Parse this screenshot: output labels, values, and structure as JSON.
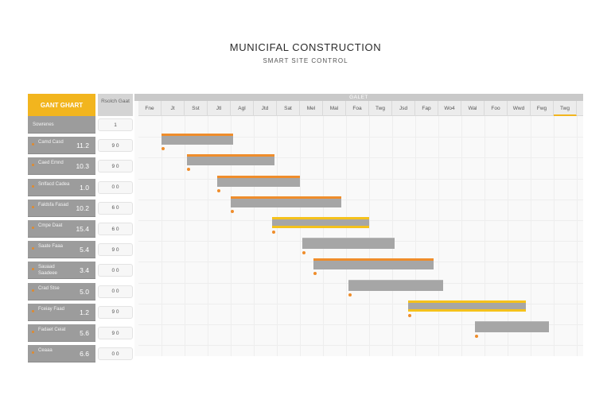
{
  "header": {
    "title": "MUNICIFAL CONSTRUCTION",
    "subtitle": "SMART SITE CONTROL"
  },
  "left_panel": {
    "title": "GANT GHART",
    "subtitle": "Rsolch Gaat",
    "rows": [
      {
        "name": "Sowrenes",
        "value": "",
        "count": "1"
      },
      {
        "name": "Camd Casd",
        "value": "11.2",
        "count": "9 0"
      },
      {
        "name": "Caed Emnd",
        "value": "10.3",
        "count": "9 0"
      },
      {
        "name": "Snlfacd Cadea",
        "value": "1.0",
        "count": "0 0"
      },
      {
        "name": "Faldsfa Fasad",
        "value": "10.2",
        "count": "6 0"
      },
      {
        "name": "Cmpe Daat",
        "value": "15.4",
        "count": "6 0"
      },
      {
        "name": "Saate Faaa",
        "value": "5.4",
        "count": "9 0"
      },
      {
        "name": "Sauaad Saadeee",
        "value": "3.4",
        "count": "0 0"
      },
      {
        "name": "Crad Stse",
        "value": "5.0",
        "count": "0 0"
      },
      {
        "name": "Fceiay Faad",
        "value": "1.2",
        "count": "9 0"
      },
      {
        "name": "Fadaet Ceiat",
        "value": "5.6",
        "count": "9 0"
      },
      {
        "name": "Ceaaa",
        "value": "6.6",
        "count": "0 0"
      }
    ]
  },
  "gantt": {
    "title": "GALET",
    "months": [
      "Fne",
      "Jt",
      "Sst",
      "Jtl",
      "Agl",
      "Jtd",
      "Sat",
      "Mel",
      "Mal",
      "Foa",
      "Twg",
      "Jsd",
      "Fap",
      "Wo4",
      "Wal",
      "Foo",
      "Wwd",
      "Fwg",
      "Twg"
    ],
    "active_month_index": 18,
    "colors": {
      "bar": "#a6a6a6",
      "orange": "#ef8d2b",
      "yellow": "#f5c21b",
      "accent": "#f2b51e"
    },
    "tasks": [
      {
        "start": 1,
        "end": 4.1,
        "style": "orange"
      },
      {
        "start": 2.1,
        "end": 5.9,
        "style": "orange"
      },
      {
        "start": 3.4,
        "end": 7.0,
        "style": "orange"
      },
      {
        "start": 4.0,
        "end": 8.8,
        "style": "orange"
      },
      {
        "start": 5.8,
        "end": 10.0,
        "style": "yellow"
      },
      {
        "start": 7.1,
        "end": 11.1,
        "style": "plain"
      },
      {
        "start": 7.6,
        "end": 12.8,
        "style": "orange"
      },
      {
        "start": 9.1,
        "end": 13.2,
        "style": "plain"
      },
      {
        "start": 11.7,
        "end": 16.8,
        "style": "yellow"
      },
      {
        "start": 14.6,
        "end": 17.8,
        "style": "plain"
      }
    ]
  }
}
